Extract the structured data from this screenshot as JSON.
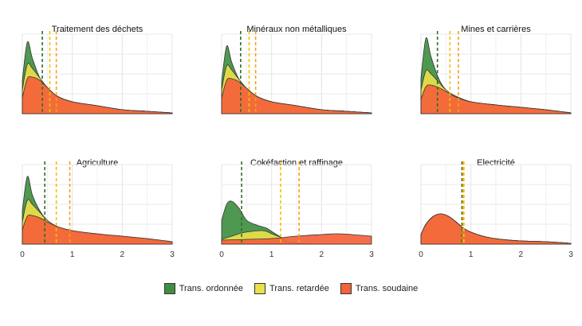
{
  "chart_data": {
    "type": "area",
    "subtype": "density-facets",
    "x_ticks": [
      0,
      1,
      2,
      3
    ],
    "xlim": [
      0,
      3
    ],
    "grid": true,
    "legend_position": "bottom",
    "series_order": [
      "ordonnee",
      "retardee",
      "soudaine"
    ],
    "series": [
      {
        "key": "ordonnee",
        "name": "Trans. ordonnée",
        "color": "#3f8f43",
        "vline_color": "#2e6f2a"
      },
      {
        "key": "retardee",
        "name": "Trans. retardée",
        "color": "#e9e04a",
        "vline_color": "#f2c200"
      },
      {
        "key": "soudaine",
        "name": "Trans. soudaine",
        "color": "#f4623a",
        "vline_color": "#f4a21a"
      }
    ],
    "panels": [
      {
        "title": "Traitement des déchets",
        "show_x_ticks": false,
        "vlines": {
          "ordonnee": 0.4,
          "retardee": 0.55,
          "soudaine": 0.68
        },
        "density": {
          "ordonnee": [
            [
              0,
              0.42
            ],
            [
              0.1,
              0.9
            ],
            [
              0.2,
              0.7
            ],
            [
              0.35,
              0.45
            ],
            [
              0.5,
              0.33
            ],
            [
              0.7,
              0.22
            ],
            [
              1.0,
              0.15
            ],
            [
              1.5,
              0.1
            ],
            [
              2.0,
              0.05
            ],
            [
              2.5,
              0.03
            ],
            [
              3.0,
              0.01
            ]
          ],
          "retardee": [
            [
              0,
              0.3
            ],
            [
              0.1,
              0.62
            ],
            [
              0.2,
              0.57
            ],
            [
              0.35,
              0.45
            ],
            [
              0.5,
              0.33
            ],
            [
              0.7,
              0.22
            ],
            [
              1.0,
              0.15
            ],
            [
              1.5,
              0.1
            ],
            [
              2.0,
              0.05
            ],
            [
              2.5,
              0.03
            ],
            [
              3.0,
              0.01
            ]
          ],
          "soudaine": [
            [
              0,
              0.2
            ],
            [
              0.1,
              0.44
            ],
            [
              0.2,
              0.46
            ],
            [
              0.35,
              0.42
            ],
            [
              0.5,
              0.33
            ],
            [
              0.7,
              0.22
            ],
            [
              1.0,
              0.15
            ],
            [
              1.5,
              0.1
            ],
            [
              2.0,
              0.05
            ],
            [
              2.5,
              0.03
            ],
            [
              3.0,
              0.01
            ]
          ]
        }
      },
      {
        "title": "Minéraux non métalliques",
        "show_x_ticks": false,
        "vlines": {
          "ordonnee": 0.38,
          "retardee": 0.55,
          "soudaine": 0.68
        },
        "density": {
          "ordonnee": [
            [
              0,
              0.4
            ],
            [
              0.1,
              0.85
            ],
            [
              0.2,
              0.65
            ],
            [
              0.35,
              0.43
            ],
            [
              0.5,
              0.32
            ],
            [
              0.7,
              0.22
            ],
            [
              1.0,
              0.15
            ],
            [
              1.5,
              0.1
            ],
            [
              2.0,
              0.05
            ],
            [
              2.5,
              0.03
            ],
            [
              3.0,
              0.01
            ]
          ],
          "retardee": [
            [
              0,
              0.3
            ],
            [
              0.1,
              0.6
            ],
            [
              0.2,
              0.55
            ],
            [
              0.35,
              0.43
            ],
            [
              0.5,
              0.32
            ],
            [
              0.7,
              0.22
            ],
            [
              1.0,
              0.15
            ],
            [
              1.5,
              0.1
            ],
            [
              2.0,
              0.05
            ],
            [
              2.5,
              0.03
            ],
            [
              3.0,
              0.01
            ]
          ],
          "soudaine": [
            [
              0,
              0.2
            ],
            [
              0.1,
              0.42
            ],
            [
              0.2,
              0.44
            ],
            [
              0.35,
              0.4
            ],
            [
              0.5,
              0.32
            ],
            [
              0.7,
              0.22
            ],
            [
              1.0,
              0.15
            ],
            [
              1.5,
              0.1
            ],
            [
              2.0,
              0.05
            ],
            [
              2.5,
              0.03
            ],
            [
              3.0,
              0.01
            ]
          ]
        }
      },
      {
        "title": "Mines et carrières",
        "show_x_ticks": false,
        "vlines": {
          "ordonnee": 0.33,
          "retardee": 0.58,
          "soudaine": 0.75
        },
        "density": {
          "ordonnee": [
            [
              0,
              0.45
            ],
            [
              0.1,
              0.95
            ],
            [
              0.2,
              0.72
            ],
            [
              0.35,
              0.45
            ],
            [
              0.5,
              0.3
            ],
            [
              0.7,
              0.22
            ],
            [
              1.0,
              0.15
            ],
            [
              1.5,
              0.11
            ],
            [
              2.0,
              0.08
            ],
            [
              2.5,
              0.05
            ],
            [
              3.0,
              0.01
            ]
          ],
          "retardee": [
            [
              0,
              0.3
            ],
            [
              0.1,
              0.54
            ],
            [
              0.2,
              0.5
            ],
            [
              0.35,
              0.4
            ],
            [
              0.5,
              0.3
            ],
            [
              0.7,
              0.22
            ],
            [
              1.0,
              0.15
            ],
            [
              1.5,
              0.11
            ],
            [
              2.0,
              0.08
            ],
            [
              2.5,
              0.05
            ],
            [
              3.0,
              0.01
            ]
          ],
          "soudaine": [
            [
              0,
              0.18
            ],
            [
              0.1,
              0.34
            ],
            [
              0.2,
              0.36
            ],
            [
              0.35,
              0.33
            ],
            [
              0.5,
              0.28
            ],
            [
              0.7,
              0.21
            ],
            [
              1.0,
              0.15
            ],
            [
              1.5,
              0.11
            ],
            [
              2.0,
              0.08
            ],
            [
              2.5,
              0.05
            ],
            [
              3.0,
              0.01
            ]
          ]
        }
      },
      {
        "title": "Agriculture",
        "show_x_ticks": true,
        "vlines": {
          "ordonnee": 0.45,
          "retardee": 0.68,
          "soudaine": 0.95
        },
        "density": {
          "ordonnee": [
            [
              0,
              0.42
            ],
            [
              0.1,
              0.85
            ],
            [
              0.2,
              0.62
            ],
            [
              0.35,
              0.42
            ],
            [
              0.5,
              0.3
            ],
            [
              0.7,
              0.22
            ],
            [
              1.0,
              0.16
            ],
            [
              1.5,
              0.12
            ],
            [
              2.0,
              0.09
            ],
            [
              2.5,
              0.06
            ],
            [
              3.0,
              0.02
            ]
          ],
          "retardee": [
            [
              0,
              0.28
            ],
            [
              0.1,
              0.55
            ],
            [
              0.2,
              0.5
            ],
            [
              0.35,
              0.4
            ],
            [
              0.5,
              0.3
            ],
            [
              0.7,
              0.22
            ],
            [
              1.0,
              0.16
            ],
            [
              1.5,
              0.12
            ],
            [
              2.0,
              0.09
            ],
            [
              2.5,
              0.06
            ],
            [
              3.0,
              0.02
            ]
          ],
          "soudaine": [
            [
              0,
              0.18
            ],
            [
              0.1,
              0.35
            ],
            [
              0.2,
              0.36
            ],
            [
              0.35,
              0.33
            ],
            [
              0.5,
              0.28
            ],
            [
              0.7,
              0.22
            ],
            [
              1.0,
              0.17
            ],
            [
              1.5,
              0.13
            ],
            [
              2.0,
              0.1
            ],
            [
              2.5,
              0.07
            ],
            [
              3.0,
              0.03
            ]
          ]
        }
      },
      {
        "title": "Cokéfaction et raffinage",
        "show_x_ticks": true,
        "vlines": {
          "ordonnee": 0.4,
          "retardee": 1.18,
          "soudaine": 1.55
        },
        "density": {
          "ordonnee": [
            [
              0,
              0.3
            ],
            [
              0.1,
              0.5
            ],
            [
              0.2,
              0.54
            ],
            [
              0.35,
              0.45
            ],
            [
              0.5,
              0.3
            ],
            [
              0.7,
              0.24
            ],
            [
              0.9,
              0.2
            ],
            [
              1.0,
              0.16
            ],
            [
              1.2,
              0.08
            ],
            [
              1.3,
              0.03
            ],
            [
              1.5,
              0.01
            ],
            [
              2.0,
              0.0
            ],
            [
              3.0,
              0.0
            ]
          ],
          "retardee": [
            [
              0,
              0.06
            ],
            [
              0.2,
              0.1
            ],
            [
              0.4,
              0.14
            ],
            [
              0.6,
              0.16
            ],
            [
              0.8,
              0.17
            ],
            [
              0.9,
              0.16
            ],
            [
              1.0,
              0.13
            ],
            [
              1.2,
              0.08
            ],
            [
              1.3,
              0.03
            ],
            [
              1.5,
              0.01
            ],
            [
              2.0,
              0.0
            ],
            [
              3.0,
              0.0
            ]
          ],
          "soudaine": [
            [
              0,
              0.05
            ],
            [
              0.5,
              0.06
            ],
            [
              1.0,
              0.07
            ],
            [
              1.5,
              0.1
            ],
            [
              2.0,
              0.12
            ],
            [
              2.3,
              0.13
            ],
            [
              2.6,
              0.12
            ],
            [
              3.0,
              0.1
            ]
          ]
        }
      },
      {
        "title": "Electricité",
        "show_x_ticks": true,
        "vlines": {
          "ordonnee": 0.82,
          "retardee": 0.86,
          "soudaine": 0.84
        },
        "density": {
          "ordonnee": [
            [
              0,
              0.12
            ],
            [
              0.1,
              0.25
            ],
            [
              0.25,
              0.35
            ],
            [
              0.4,
              0.38
            ],
            [
              0.55,
              0.35
            ],
            [
              0.7,
              0.28
            ],
            [
              0.85,
              0.2
            ],
            [
              1.0,
              0.15
            ],
            [
              1.3,
              0.09
            ],
            [
              1.6,
              0.06
            ],
            [
              2.0,
              0.04
            ],
            [
              2.5,
              0.03
            ],
            [
              3.0,
              0.01
            ]
          ],
          "retardee": [
            [
              0,
              0.12
            ],
            [
              0.1,
              0.25
            ],
            [
              0.25,
              0.35
            ],
            [
              0.4,
              0.38
            ],
            [
              0.55,
              0.35
            ],
            [
              0.7,
              0.28
            ],
            [
              0.85,
              0.2
            ],
            [
              1.0,
              0.15
            ],
            [
              1.3,
              0.09
            ],
            [
              1.6,
              0.06
            ],
            [
              2.0,
              0.04
            ],
            [
              2.5,
              0.03
            ],
            [
              3.0,
              0.01
            ]
          ],
          "soudaine": [
            [
              0,
              0.12
            ],
            [
              0.1,
              0.25
            ],
            [
              0.25,
              0.35
            ],
            [
              0.4,
              0.38
            ],
            [
              0.55,
              0.35
            ],
            [
              0.7,
              0.28
            ],
            [
              0.85,
              0.2
            ],
            [
              1.0,
              0.15
            ],
            [
              1.3,
              0.09
            ],
            [
              1.6,
              0.06
            ],
            [
              2.0,
              0.04
            ],
            [
              2.5,
              0.03
            ],
            [
              3.0,
              0.01
            ]
          ]
        }
      }
    ]
  }
}
